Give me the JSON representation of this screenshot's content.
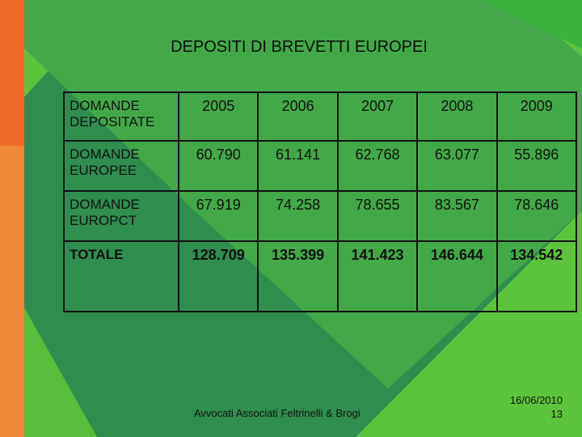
{
  "slide": {
    "title": "DEPOSITI DI BREVETTI EUROPEI",
    "table": {
      "header": [
        "DOMANDE DEPOSITATE",
        "2005",
        "2006",
        "2007",
        "2008",
        "2009"
      ],
      "rows": [
        {
          "label": "DOMANDE EUROPEE",
          "values": [
            "60.790",
            "61.141",
            "62.768",
            "63.077",
            "55.896"
          ]
        },
        {
          "label": "DOMANDE EUROPCT",
          "values": [
            "67.919",
            "74.258",
            "78.655",
            "83.567",
            "78.646"
          ]
        },
        {
          "label": "TOTALE",
          "values": [
            "128.709",
            "135.399",
            "141.423",
            "146.644",
            "134.542"
          ]
        }
      ]
    },
    "footer": "Avvocati Associati Feltrinelli & Brogi",
    "date": "16/06/2010",
    "page_number": "13"
  },
  "colors": {
    "left_bar": "#f2782f",
    "left_bar_accent": "#ec5d22",
    "background_light": "#5cc43c",
    "background_dark": "#2f8d4e"
  }
}
